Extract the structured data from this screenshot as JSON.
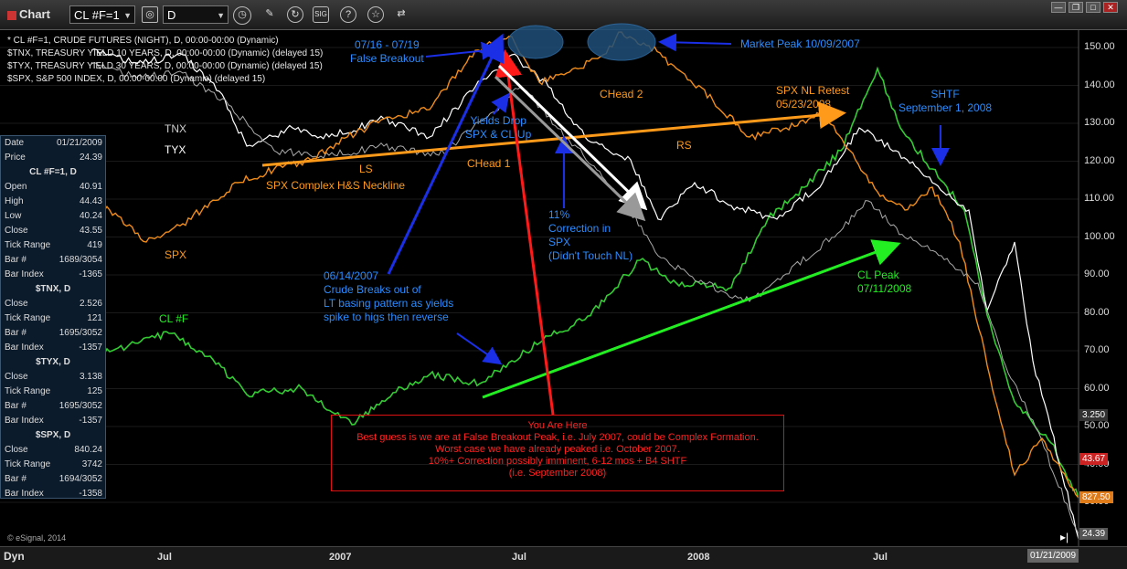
{
  "app": {
    "title": "Chart",
    "symbol": "CL #F=1",
    "interval": "D",
    "mode": "Dyn",
    "copyright": "© eSignal, 2014"
  },
  "toolbar": {
    "icons": [
      "clock-icon",
      "pencil-icon",
      "refresh-icon",
      "sig-icon",
      "help-icon",
      "link-icon"
    ]
  },
  "legend": [
    "* CL #F=1, CRUDE FUTURES (NIGHT), D, 00:00-00:00 (Dynamic)",
    "$TNX, TREASURY YIELD 10 YEARS, D, 00:00-00:00 (Dynamic) (delayed 15)",
    "$TYX, TREASURY YIELD 30 YEARS, D, 00:00-00:00 (Dynamic) (delayed 15)",
    "$SPX, S&P 500 INDEX, D, 00:00-00:00 (Dynamic) (delayed 15)"
  ],
  "data_window": [
    {
      "label": "Date",
      "value": "01/21/2009"
    },
    {
      "label": "Price",
      "value": "24.39"
    },
    {
      "header": "CL #F=1, D"
    },
    {
      "label": "Open",
      "value": "40.91"
    },
    {
      "label": "High",
      "value": "44.43"
    },
    {
      "label": "Low",
      "value": "40.24"
    },
    {
      "label": "Close",
      "value": "43.55"
    },
    {
      "label": "Tick Range",
      "value": "419"
    },
    {
      "label": "Bar #",
      "value": "1689/3054"
    },
    {
      "label": "Bar Index",
      "value": "-1365"
    },
    {
      "header": "$TNX, D"
    },
    {
      "label": "Close",
      "value": "2.526"
    },
    {
      "label": "Tick Range",
      "value": "121"
    },
    {
      "label": "Bar #",
      "value": "1695/3052"
    },
    {
      "label": "Bar Index",
      "value": "-1357"
    },
    {
      "header": "$TYX, D"
    },
    {
      "label": "Close",
      "value": "3.138"
    },
    {
      "label": "Tick Range",
      "value": "125"
    },
    {
      "label": "Bar #",
      "value": "1695/3052"
    },
    {
      "label": "Bar Index",
      "value": "-1357"
    },
    {
      "header": "$SPX, D"
    },
    {
      "label": "Close",
      "value": "840.24"
    },
    {
      "label": "Tick Range",
      "value": "3742"
    },
    {
      "label": "Bar #",
      "value": "1694/3052"
    },
    {
      "label": "Bar Index",
      "value": "-1358"
    }
  ],
  "annotations": {
    "false_breakout": "07/16 - 07/19\nFalse Breakout",
    "market_peak": "Market Peak 10/09/2007",
    "tnx": "TNX",
    "tyx": "TYX",
    "spx": "SPX",
    "ls": "LS",
    "neckline": "SPX Complex H&S Neckline",
    "chead1": "CHead 1",
    "chead2": "CHead 2",
    "rs": "RS",
    "yields_drop": "Yields Drop\nSPX & CL Up",
    "correction": "11%\nCorrection in\nSPX\n(Didn't Touch NL)",
    "nl_retest": "SPX NL Retest\n05/23/2008",
    "shtf": "SHTF\nSeptember 1, 2008",
    "crude_breaks": "06/14/2007\nCrude Breaks out of\nLT basing pattern as yields\nspike to higs then reverse",
    "cl_f": "CL #F",
    "cl_peak": "CL Peak\n07/11/2008",
    "you_are_here": "You Are Here\nBest guess is we are at False Breakout Peak, i.e. July 2007, could be Complex Formation.\nWorst case we have already peaked i.e. October 2007.\n10%+ Correction possibly imminent, 6-12 mos + B4 SHTF\n(i.e. September 2008)"
  },
  "chart_data": {
    "type": "line",
    "x_labels": [
      "Jul",
      "2007",
      "Jul",
      "2008",
      "Jul"
    ],
    "current_date": "01/21/2009",
    "y_ticks": [
      "150.00",
      "140.00",
      "130.00",
      "120.00",
      "110.00",
      "100.00",
      "90.00",
      "80.00",
      "70.00",
      "60.00",
      "50.00",
      "40.00",
      "30.00"
    ],
    "price_badges": [
      {
        "label": "3.250",
        "color": "#333333"
      },
      {
        "label": "43.67",
        "color": "#cc2222"
      },
      {
        "label": "827.50",
        "color": "#e07b1a"
      },
      {
        "label": "24.39",
        "color": "#555555"
      }
    ],
    "series": [
      {
        "name": "CL #F",
        "color": "#33cc33"
      },
      {
        "name": "$TNX",
        "color": "#ffffff"
      },
      {
        "name": "$TYX",
        "color": "#aaaaaa"
      },
      {
        "name": "$SPX",
        "color": "#f08c1a"
      }
    ],
    "colors": {
      "blue": "#1a2fe6",
      "green": "#22ee22",
      "orange": "#ff9a1a",
      "red": "#ff1a1a",
      "white": "#ffffff",
      "text_blue": "#2b8cff"
    }
  }
}
